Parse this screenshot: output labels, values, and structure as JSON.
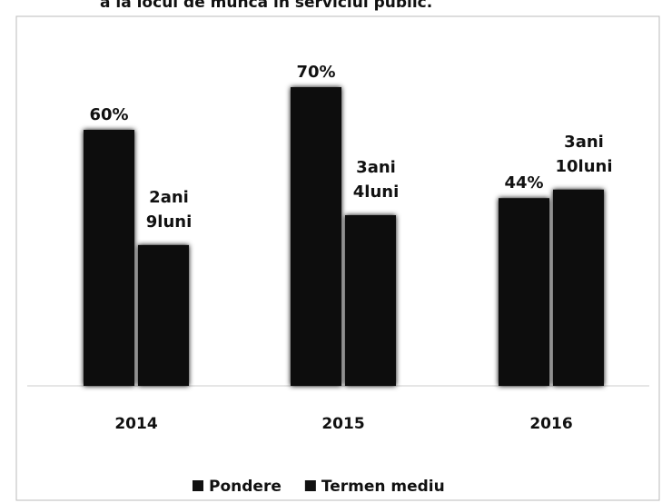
{
  "chart_data": {
    "type": "bar",
    "title": "a la locul de muncă în serviciul public.",
    "categories": [
      "2014",
      "2015",
      "2016"
    ],
    "series": [
      {
        "name": "Pondere",
        "color": "#111111",
        "values": [
          60,
          70,
          44
        ],
        "value_labels": [
          "60%",
          "70%",
          "44%"
        ]
      },
      {
        "name": "Termen mediu",
        "color": "#111111",
        "values": [
          33,
          40,
          46
        ],
        "value_labels": [
          [
            "2ani",
            "9luni"
          ],
          [
            "3ani",
            "4luni"
          ],
          [
            "3ani",
            "10luni"
          ]
        ]
      }
    ],
    "ylim": [
      0,
      80
    ],
    "legend": "bottom"
  }
}
